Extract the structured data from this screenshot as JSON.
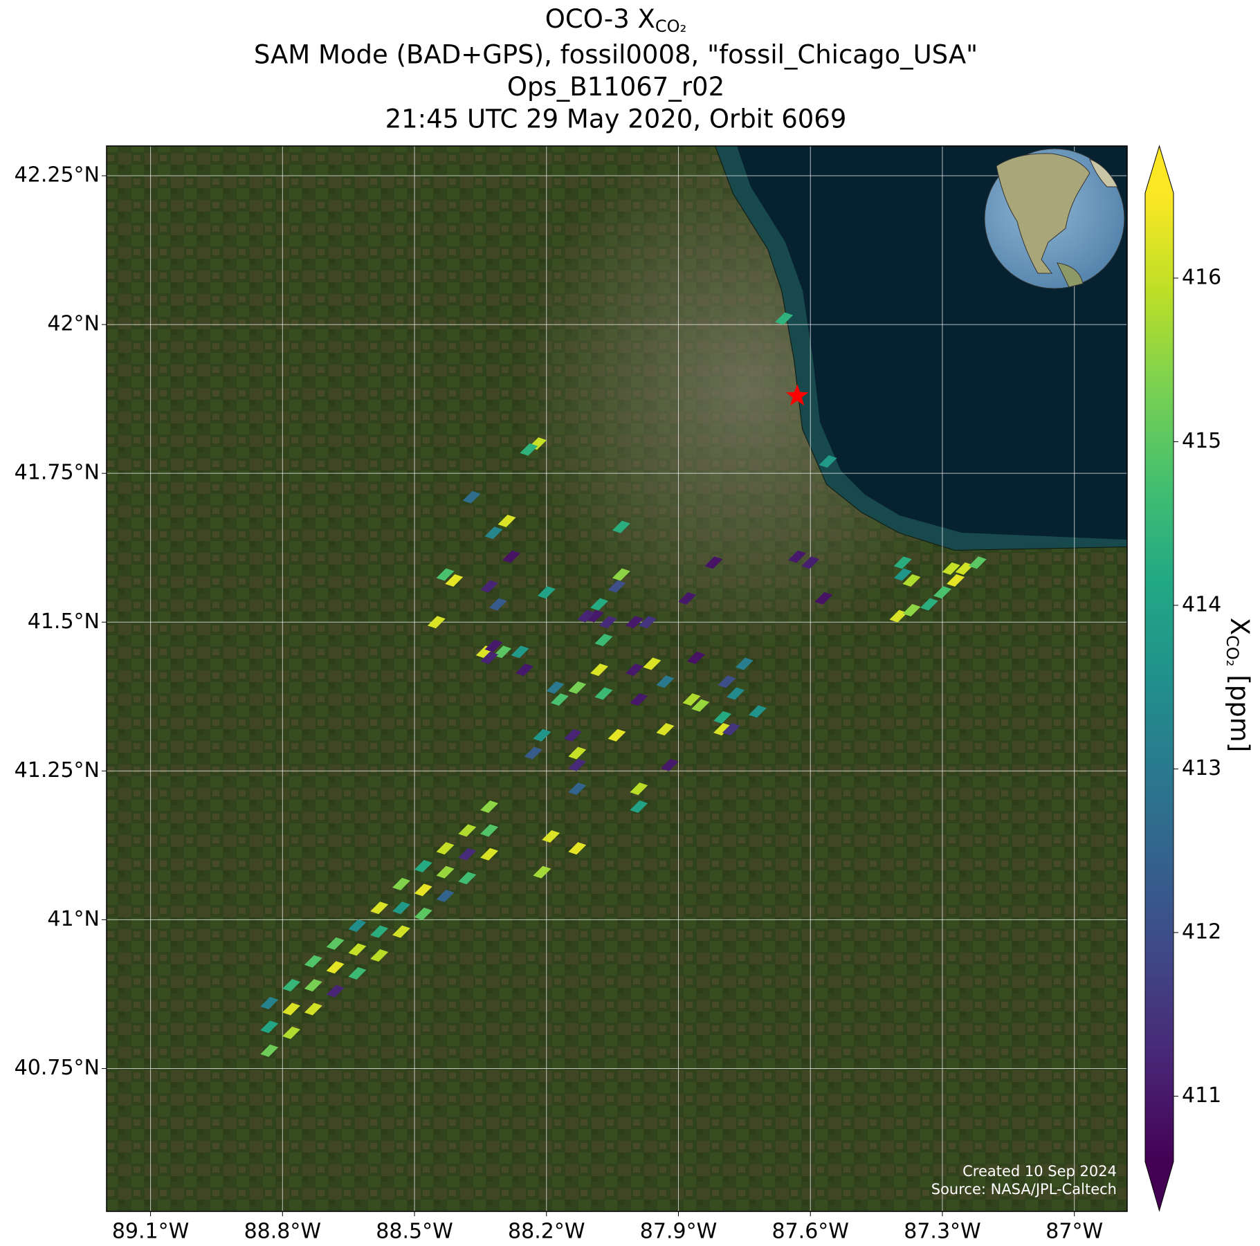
{
  "chart_data": {
    "type": "map",
    "title": "OCO-3 X",
    "title_sub": "CO₂",
    "subtitles": [
      "SAM Mode (BAD+GPS), fossil0008, \"fossil_Chicago_USA\"",
      "Ops_B11067_r02",
      "21:45 UTC 29 May 2020, Orbit 6069"
    ],
    "xlim": [
      -89.2,
      -86.88
    ],
    "ylim": [
      40.51,
      42.3
    ],
    "xticks": [
      {
        "value": -89.1,
        "label": "89.1°W"
      },
      {
        "value": -88.8,
        "label": "88.8°W"
      },
      {
        "value": -88.5,
        "label": "88.5°W"
      },
      {
        "value": -88.2,
        "label": "88.2°W"
      },
      {
        "value": -87.9,
        "label": "87.9°W"
      },
      {
        "value": -87.6,
        "label": "87.6°W"
      },
      {
        "value": -87.3,
        "label": "87.3°W"
      },
      {
        "value": -87,
        "label": "87°W"
      }
    ],
    "yticks": [
      {
        "value": 42.25,
        "label": "42.25°N"
      },
      {
        "value": 42,
        "label": "42°N"
      },
      {
        "value": 41.75,
        "label": "41.75°N"
      },
      {
        "value": 41.5,
        "label": "41.5°N"
      },
      {
        "value": 41.25,
        "label": "41.25°N"
      },
      {
        "value": 41,
        "label": "41°N"
      },
      {
        "value": 40.75,
        "label": "40.75°N"
      }
    ],
    "grid": true,
    "site": {
      "lon": -87.63,
      "lat": 41.88,
      "color": "#ff0000"
    },
    "colorbar": {
      "label": "X",
      "label_sub": "CO₂",
      "label_unit": "[ppm]",
      "lim": [
        410.6,
        416.52
      ],
      "ticks": [
        411,
        412,
        413,
        414,
        415,
        416
      ],
      "colormap": "viridis"
    },
    "footprints": {
      "lons": [
        -88.83,
        -88.83,
        -88.83,
        -88.78,
        -88.78,
        -88.78,
        -88.73,
        -88.73,
        -88.73,
        -88.68,
        -88.68,
        -88.68,
        -88.63,
        -88.63,
        -88.63,
        -88.58,
        -88.58,
        -88.58,
        -88.53,
        -88.53,
        -88.53,
        -88.48,
        -88.48,
        -88.48,
        -88.43,
        -88.43,
        -88.43,
        -88.38,
        -88.38,
        -88.38,
        -88.33,
        -88.33,
        -88.33,
        -88.22,
        -88.24,
        -88.37,
        -88.29,
        -88.32,
        -88.28,
        -88.43,
        -88.41,
        -88.33,
        -88.31,
        -88.45,
        -88.2,
        -88.03,
        -88.03,
        -88.04,
        -88.08,
        -88.09,
        -88.06,
        -88.11,
        -88.07,
        -87.97,
        -88.0,
        -88.34,
        -88.32,
        -88.3,
        -88.26,
        -88.33,
        -88.25,
        -88.08,
        -88.07,
        -88.13,
        -88.17,
        -88.18,
        -88.0,
        -87.96,
        -87.93,
        -87.99,
        -87.86,
        -87.88,
        -87.82,
        -87.79,
        -87.75,
        -87.77,
        -87.72,
        -87.87,
        -87.85,
        -87.8,
        -87.8,
        -87.78,
        -88.21,
        -88.23,
        -88.14,
        -88.13,
        -88.04,
        -87.93,
        -88.13,
        -88.13,
        -87.92,
        -87.99,
        -87.99,
        -88.19,
        -88.13,
        -88.21,
        -87.63,
        -87.6,
        -87.57,
        -87.39,
        -87.37,
        -87.39,
        -87.4,
        -87.37,
        -87.33,
        -87.3,
        -87.27,
        -87.25,
        -87.22,
        -87.28,
        -87.56,
        -87.66
      ],
      "lats": [
        40.78,
        40.82,
        40.86,
        40.81,
        40.85,
        40.89,
        40.85,
        40.89,
        40.93,
        40.88,
        40.92,
        40.96,
        40.91,
        40.95,
        40.99,
        40.94,
        40.98,
        41.02,
        40.98,
        41.02,
        41.06,
        41.01,
        41.05,
        41.09,
        41.04,
        41.08,
        41.12,
        41.07,
        41.11,
        41.15,
        41.11,
        41.15,
        41.19,
        41.8,
        41.79,
        41.71,
        41.67,
        41.65,
        41.61,
        41.58,
        41.57,
        41.56,
        41.53,
        41.5,
        41.55,
        41.66,
        41.58,
        41.56,
        41.53,
        41.51,
        41.5,
        41.51,
        41.47,
        41.5,
        41.5,
        41.45,
        41.46,
        41.45,
        41.45,
        41.44,
        41.42,
        41.42,
        41.38,
        41.39,
        41.37,
        41.39,
        41.42,
        41.43,
        41.4,
        41.37,
        41.44,
        41.54,
        41.6,
        41.4,
        41.43,
        41.38,
        41.35,
        41.37,
        41.36,
        41.34,
        41.32,
        41.32,
        41.31,
        41.28,
        41.31,
        41.28,
        41.31,
        41.32,
        41.26,
        41.22,
        41.26,
        41.22,
        41.19,
        41.14,
        41.12,
        41.08,
        41.61,
        41.6,
        41.54,
        41.6,
        41.57,
        41.58,
        41.51,
        41.52,
        41.53,
        41.55,
        41.57,
        41.59,
        41.6,
        41.59,
        41.77,
        42.01
      ],
      "values": [
        415.2,
        414.1,
        413.2,
        415.8,
        416.2,
        414.5,
        416.1,
        415.3,
        414.9,
        411.2,
        416.3,
        415.0,
        414.6,
        416.0,
        413.5,
        415.9,
        414.3,
        416.2,
        416.1,
        413.8,
        415.4,
        415.0,
        416.3,
        414.2,
        412.5,
        415.6,
        416.0,
        414.7,
        411.3,
        415.8,
        416.2,
        414.9,
        415.5,
        416,
        414.4,
        412.7,
        416.2,
        413.3,
        410.9,
        414.8,
        416.3,
        411.2,
        412.3,
        416.2,
        414,
        414.3,
        415.5,
        412,
        414.2,
        411,
        411.3,
        411.2,
        414.6,
        411.5,
        411,
        416.2,
        411,
        415,
        413.8,
        411.2,
        411,
        416.2,
        414.6,
        415.3,
        414.8,
        413,
        411,
        416.2,
        413,
        411,
        410.9,
        411,
        410.9,
        412,
        413.1,
        413.4,
        413.6,
        415.8,
        415.6,
        414.2,
        416.2,
        411.5,
        413.7,
        412.3,
        411.2,
        416,
        416.3,
        416.2,
        411.3,
        412.5,
        411,
        415.9,
        414,
        416.2,
        416.3,
        415.7,
        411,
        411.1,
        410.9,
        414.3,
        415.8,
        413.7,
        416.2,
        415.5,
        414.3,
        414.8,
        416.3,
        416.1,
        415,
        416,
        413.8,
        414.4
      ]
    },
    "notes": [
      "Created 10 Sep 2024",
      "Source: NASA/JPL-Caltech"
    ]
  }
}
